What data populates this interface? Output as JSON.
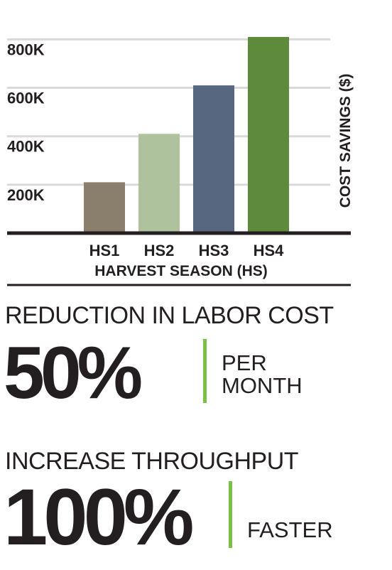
{
  "chart_data": {
    "type": "bar",
    "categories": [
      "HS1",
      "HS2",
      "HS3",
      "HS4"
    ],
    "values": [
      210000,
      410000,
      610000,
      810000
    ],
    "colors": [
      "#8a7e6d",
      "#aec39d",
      "#56677f",
      "#5e8a3b"
    ],
    "xlabel": "HARVEST SEASON (HS)",
    "ylabel": "COST SAVINGS ($)",
    "ylim": [
      0,
      820000
    ],
    "yticks": [
      {
        "value": 200000,
        "label": "200K"
      },
      {
        "value": 400000,
        "label": "400K"
      },
      {
        "value": 600000,
        "label": "600K"
      },
      {
        "value": 800000,
        "label": "800K"
      }
    ],
    "grid": true
  },
  "stats": [
    {
      "heading": "REDUCTION IN LABOR COST",
      "value": "50%",
      "label_lines": [
        "PER",
        "MONTH"
      ]
    },
    {
      "heading": "INCREASE THROUGHPUT",
      "value": "100%",
      "label_lines": [
        "FASTER"
      ]
    }
  ]
}
